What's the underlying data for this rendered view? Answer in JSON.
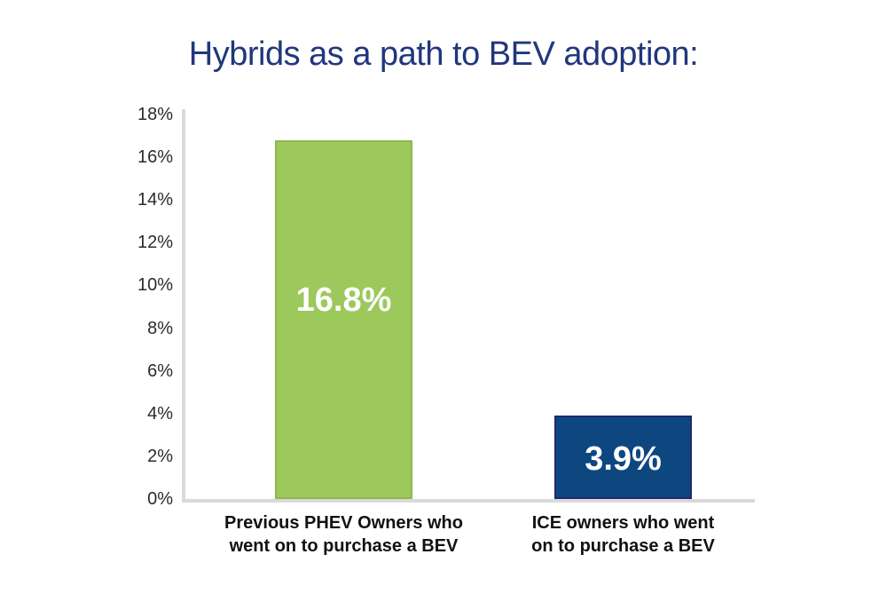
{
  "chart_data": {
    "type": "bar",
    "title": "Hybrids as a path to BEV adoption:",
    "categories": [
      "Previous PHEV Owners who went on to purchase a BEV",
      "ICE owners who went on to purchase a BEV"
    ],
    "category_lines": [
      [
        "Previous PHEV Owners who",
        "went on to purchase a BEV"
      ],
      [
        "ICE owners who went",
        "on to purchase a BEV"
      ]
    ],
    "values": [
      16.8,
      3.9
    ],
    "value_labels": [
      "16.8%",
      "3.9%"
    ],
    "bar_fill_colors": [
      "#9cc85c",
      "#0e4780"
    ],
    "bar_border_colors": [
      "#8cb94a",
      "#23286e"
    ],
    "xlabel": "",
    "ylabel": "",
    "ylim": [
      0,
      18
    ],
    "ytick_step": 2,
    "ytick_labels": [
      "0%",
      "2%",
      "4%",
      "6%",
      "8%",
      "10%",
      "12%",
      "14%",
      "16%",
      "18%"
    ],
    "grid": false,
    "legend": false,
    "colors": {
      "background": "#ffffff",
      "title": "#21377c",
      "axis_line": "#d9d9d9",
      "tick_label": "#2b2b2b",
      "category_label": "#111111",
      "value_label": "#ffffff"
    }
  }
}
